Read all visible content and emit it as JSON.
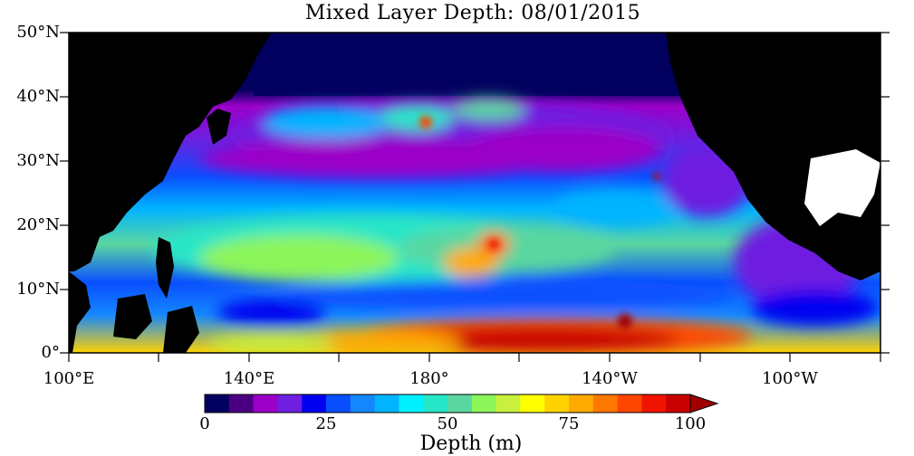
{
  "title": "Mixed Layer Depth: 08/01/2015",
  "map": {
    "lat_labels": [
      "50°N",
      "40°N",
      "30°N",
      "20°N",
      "10°N",
      "0°"
    ],
    "lon_labels": [
      "100°E",
      "140°E",
      "180°",
      "140°W",
      "100°W"
    ],
    "colors": {
      "land": "#000000",
      "no_data": "#ffffff",
      "frame": "#000000"
    }
  },
  "colorbar": {
    "title": "Depth (m)",
    "tick_labels": [
      "0",
      "25",
      "50",
      "75",
      "100"
    ],
    "range": [
      0,
      100
    ],
    "colors": [
      "#02005f",
      "#4b0082",
      "#9b00c8",
      "#6e1fe0",
      "#0000f0",
      "#0a4fff",
      "#1487ff",
      "#00b4ff",
      "#00f0ff",
      "#28e6c8",
      "#5ad7a0",
      "#8cf55a",
      "#c8f03c",
      "#ffff00",
      "#ffd200",
      "#ffaa00",
      "#ff7800",
      "#ff4600",
      "#f01400",
      "#c80000",
      "#a00000"
    ]
  }
}
